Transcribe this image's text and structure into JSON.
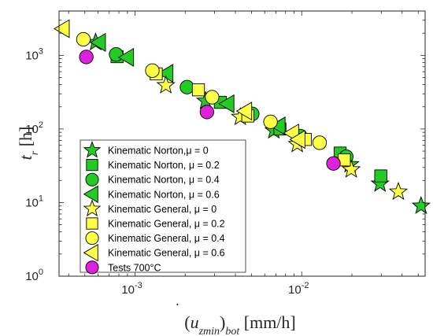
{
  "chart_data": {
    "type": "scatter",
    "xscale": "log",
    "yscale": "log",
    "xlim": [
      0.00035,
      0.055
    ],
    "ylim": [
      1,
      4000
    ],
    "grid": false,
    "legend_position": "bottom-left",
    "xlabel": "(u̇_zmin)_bot [mm/h]",
    "ylabel": "t_r [h]",
    "x_ticks": [
      {
        "value": 0.001,
        "base": "10",
        "exp": "-3"
      },
      {
        "value": 0.01,
        "base": "10",
        "exp": "-2"
      }
    ],
    "y_ticks": [
      {
        "value": 1,
        "base": "10",
        "exp": "0"
      },
      {
        "value": 10,
        "base": "10",
        "exp": "1"
      },
      {
        "value": 100,
        "base": "10",
        "exp": "2"
      },
      {
        "value": 1000,
        "base": "10",
        "exp": "3"
      }
    ],
    "series": [
      {
        "name": "Kinematic Norton,μ = 0",
        "marker": "star",
        "color": "#22cc22",
        "points": [
          [
            0.00058,
            1500
          ],
          [
            0.00265,
            240
          ],
          [
            0.0068,
            95
          ],
          [
            0.0195,
            33
          ],
          [
            0.0295,
            18
          ],
          [
            0.052,
            9
          ]
        ]
      },
      {
        "name": "Kinematic Norton, μ = 0.2",
        "marker": "square",
        "color": "#22cc22",
        "points": [
          [
            0.00078,
            960
          ],
          [
            0.00325,
            230
          ],
          [
            0.0074,
            100
          ],
          [
            0.017,
            47
          ],
          [
            0.0298,
            23
          ]
        ]
      },
      {
        "name": "Kinematic Norton, μ = 0.4",
        "marker": "circle",
        "color": "#22cc22",
        "points": [
          [
            0.00077,
            1030
          ],
          [
            0.00205,
            370
          ],
          [
            0.00505,
            160
          ],
          [
            0.0098,
            80
          ],
          [
            0.0185,
            42
          ]
        ]
      },
      {
        "name": "Kinematic Norton, μ = 0.6",
        "marker": "triangle-left",
        "color": "#22cc22",
        "points": [
          [
            0.00061,
            1500
          ],
          [
            0.0009,
            940
          ],
          [
            0.00155,
            570
          ],
          [
            0.0036,
            220
          ],
          [
            0.0073,
            110
          ]
        ]
      },
      {
        "name": "Kinematic General, μ = 0",
        "marker": "star",
        "color": "#ffff44",
        "points": [
          [
            0.00153,
            390
          ],
          [
            0.00428,
            145
          ],
          [
            0.0094,
            62
          ],
          [
            0.0198,
            28
          ],
          [
            0.038,
            14
          ]
        ]
      },
      {
        "name": "Kinematic General, μ = 0.2",
        "marker": "square",
        "color": "#ffff44",
        "points": [
          [
            0.00134,
            560
          ],
          [
            0.0024,
            340
          ],
          [
            0.00475,
            150
          ],
          [
            0.0105,
            72
          ],
          [
            0.018,
            38
          ]
        ]
      },
      {
        "name": "Kinematic General, μ = 0.4",
        "marker": "circle",
        "color": "#ffff44",
        "points": [
          [
            0.00049,
            1650
          ],
          [
            0.00127,
            620
          ],
          [
            0.0029,
            270
          ],
          [
            0.0065,
            125
          ],
          [
            0.0128,
            65
          ]
        ]
      },
      {
        "name": "Kinematic General, μ = 0.6",
        "marker": "triangle-left",
        "color": "#ffff44",
        "points": [
          [
            0.00037,
            2300
          ],
          [
            0.0046,
            175
          ],
          [
            0.0088,
            88
          ],
          [
            0.0096,
            72
          ]
        ]
      },
      {
        "name": "Tests 700°C",
        "marker": "circle",
        "color": "#e020e0",
        "points": [
          [
            0.00051,
            950
          ],
          [
            0.0027,
            170
          ],
          [
            0.0155,
            34
          ]
        ]
      }
    ]
  }
}
